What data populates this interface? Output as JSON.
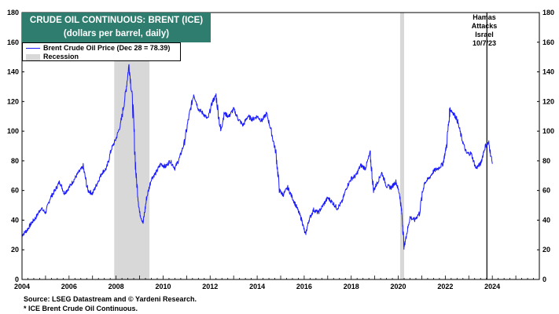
{
  "chart_data": {
    "type": "line",
    "title": "CRUDE OIL CONTINUOUS: BRENT (ICE)",
    "subtitle": "(dollars per barrel, daily)",
    "ylim": [
      0,
      180
    ],
    "y_ticks": [
      0,
      20,
      40,
      60,
      80,
      100,
      120,
      140,
      160,
      180
    ],
    "xlim": [
      2004,
      2026
    ],
    "x_ticks": [
      "2004",
      "2006",
      "2008",
      "2010",
      "2012",
      "2014",
      "2016",
      "2018",
      "2020",
      "2022",
      "2024"
    ],
    "y_axis_sides": "left and right",
    "grid": false,
    "legend_position": "top-left",
    "colors": {
      "line": "#1a1aff",
      "recession": "#d8d8d8",
      "title_bg": "#2e7d6e"
    },
    "series": [
      {
        "name": "Brent Crude Oil Price (Dec 28 = 78.39)",
        "x": [
          2004.0,
          2004.2,
          2004.4,
          2004.6,
          2004.8,
          2005.0,
          2005.2,
          2005.4,
          2005.6,
          2005.8,
          2006.0,
          2006.2,
          2006.4,
          2006.6,
          2006.8,
          2007.0,
          2007.2,
          2007.4,
          2007.6,
          2007.8,
          2008.0,
          2008.2,
          2008.4,
          2008.55,
          2008.7,
          2008.85,
          2009.0,
          2009.15,
          2009.3,
          2009.5,
          2009.7,
          2009.9,
          2010.1,
          2010.3,
          2010.5,
          2010.7,
          2010.9,
          2011.1,
          2011.3,
          2011.5,
          2011.7,
          2011.9,
          2012.1,
          2012.25,
          2012.45,
          2012.6,
          2012.8,
          2013.0,
          2013.2,
          2013.4,
          2013.6,
          2013.8,
          2014.0,
          2014.2,
          2014.4,
          2014.6,
          2014.8,
          2014.95,
          2015.1,
          2015.3,
          2015.5,
          2015.7,
          2015.9,
          2016.05,
          2016.2,
          2016.4,
          2016.6,
          2016.8,
          2017.0,
          2017.2,
          2017.4,
          2017.6,
          2017.8,
          2018.0,
          2018.2,
          2018.4,
          2018.6,
          2018.8,
          2018.95,
          2019.1,
          2019.3,
          2019.5,
          2019.7,
          2019.9,
          2020.05,
          2020.15,
          2020.25,
          2020.35,
          2020.5,
          2020.7,
          2020.9,
          2021.1,
          2021.3,
          2021.5,
          2021.7,
          2021.9,
          2022.05,
          2022.2,
          2022.35,
          2022.5,
          2022.7,
          2022.9,
          2023.1,
          2023.3,
          2023.5,
          2023.7,
          2023.85,
          2024.0
        ],
        "y": [
          30,
          33,
          38,
          42,
          48,
          45,
          55,
          60,
          66,
          58,
          62,
          67,
          72,
          76,
          60,
          58,
          65,
          72,
          75,
          88,
          95,
          105,
          125,
          145,
          120,
          70,
          45,
          38,
          55,
          68,
          72,
          78,
          76,
          80,
          75,
          82,
          92,
          110,
          125,
          115,
          112,
          108,
          120,
          124,
          100,
          112,
          110,
          115,
          108,
          104,
          110,
          108,
          110,
          107,
          112,
          100,
          85,
          60,
          57,
          62,
          55,
          48,
          40,
          30,
          40,
          47,
          45,
          50,
          55,
          52,
          48,
          52,
          62,
          68,
          70,
          77,
          75,
          85,
          60,
          65,
          72,
          63,
          62,
          66,
          58,
          45,
          22,
          30,
          42,
          40,
          45,
          65,
          68,
          73,
          75,
          78,
          90,
          115,
          112,
          108,
          95,
          85,
          85,
          75,
          78,
          90,
          92,
          78
        ]
      }
    ],
    "recessions": [
      [
        2007.92,
        2009.42
      ],
      [
        2020.08,
        2020.25
      ]
    ],
    "annotation": {
      "x": 2023.77,
      "lines": [
        "Hamas",
        "Attacks",
        "Israel",
        "10/7/23"
      ]
    },
    "legend": {
      "line_label": "Brent Crude Oil Price (Dec 28 = 78.39)",
      "recession_label": "Recession"
    },
    "source": "Source: LSEG Datastream and © Yardeni Research.",
    "footnote": "* ICE Brent Crude Oil Continuous."
  }
}
